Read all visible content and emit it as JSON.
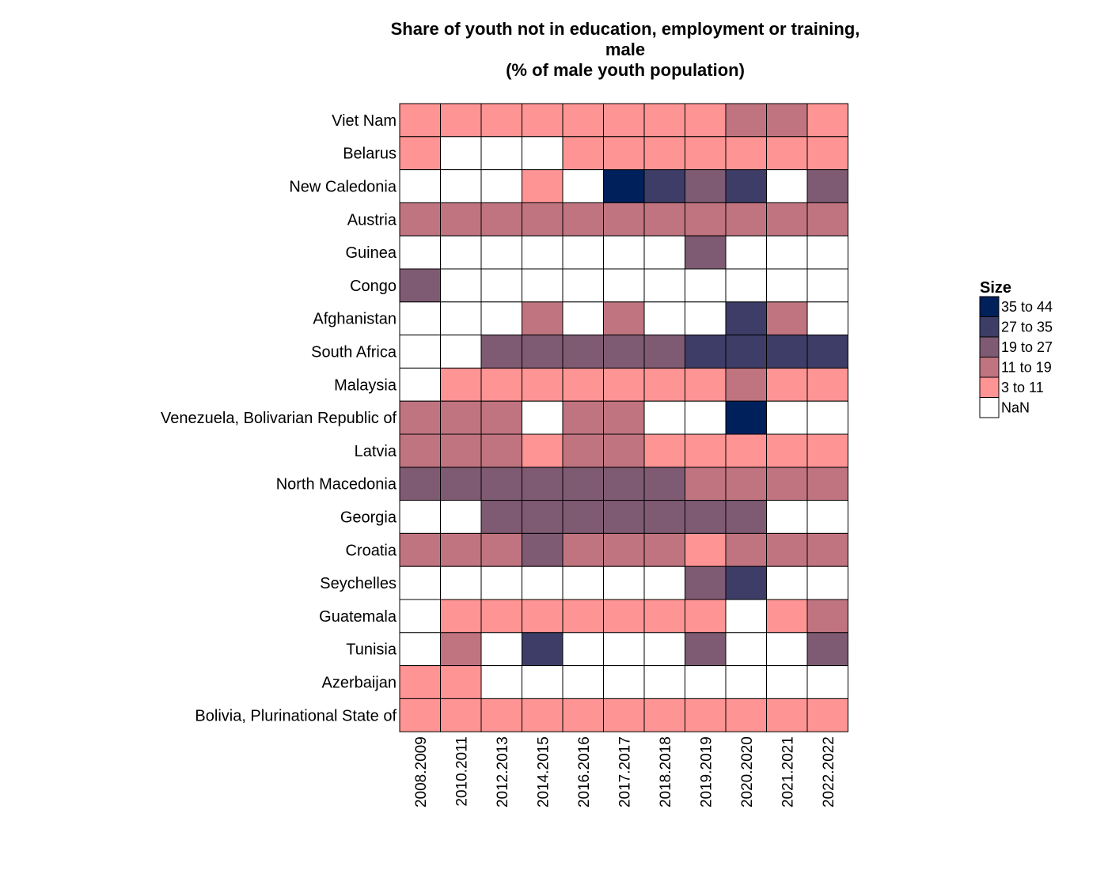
{
  "chart_data": {
    "type": "heatmap",
    "title": [
      "Share of youth not in education, employment or training,",
      "male",
      "(% of male youth population)"
    ],
    "columns": [
      "2008.2009",
      "2010.2011",
      "2012.2013",
      "2014.2015",
      "2016.2016",
      "2017.2017",
      "2018.2018",
      "2019.2019",
      "2020.2020",
      "2021.2021",
      "2022.2022"
    ],
    "rows": [
      "Viet Nam",
      "Belarus",
      "New Caledonia",
      "Austria",
      "Guinea",
      "Congo",
      "Afghanistan",
      "South Africa",
      "Malaysia",
      "Venezuela, Bolivarian Republic of",
      "Latvia",
      "North Macedonia",
      "Georgia",
      "Croatia",
      "Seychelles",
      "Guatemala",
      "Tunisia",
      "Azerbaijan",
      "Bolivia, Plurinational State of"
    ],
    "values": [
      [
        7,
        7,
        7,
        7,
        7,
        7,
        7,
        7,
        13,
        13,
        7
      ],
      [
        7,
        null,
        null,
        null,
        7,
        7,
        7,
        7,
        7,
        7,
        7
      ],
      [
        null,
        null,
        null,
        7,
        null,
        38,
        30,
        22,
        30,
        null,
        22
      ],
      [
        14,
        14,
        14,
        14,
        14,
        14,
        14,
        14,
        14,
        14,
        14
      ],
      [
        null,
        null,
        null,
        null,
        null,
        null,
        null,
        22,
        null,
        null,
        null
      ],
      [
        22,
        null,
        null,
        null,
        null,
        null,
        null,
        null,
        null,
        null,
        null
      ],
      [
        null,
        null,
        null,
        14,
        null,
        14,
        null,
        null,
        30,
        14,
        null
      ],
      [
        null,
        null,
        22,
        22,
        22,
        22,
        22,
        30,
        30,
        30,
        30
      ],
      [
        null,
        7,
        7,
        7,
        7,
        7,
        7,
        7,
        14,
        7,
        7
      ],
      [
        14,
        14,
        14,
        null,
        14,
        14,
        null,
        null,
        38,
        null,
        null
      ],
      [
        14,
        14,
        14,
        7,
        14,
        14,
        7,
        7,
        7,
        7,
        7
      ],
      [
        22,
        22,
        22,
        22,
        22,
        22,
        22,
        14,
        14,
        14,
        14
      ],
      [
        null,
        null,
        22,
        22,
        22,
        22,
        22,
        22,
        22,
        null,
        null
      ],
      [
        14,
        14,
        14,
        22,
        14,
        14,
        14,
        7,
        14,
        14,
        14
      ],
      [
        null,
        null,
        null,
        null,
        null,
        null,
        null,
        22,
        30,
        null,
        null
      ],
      [
        null,
        7,
        7,
        7,
        7,
        7,
        7,
        7,
        null,
        7,
        14
      ],
      [
        null,
        14,
        null,
        30,
        null,
        null,
        null,
        22,
        null,
        null,
        22
      ],
      [
        7,
        7,
        null,
        null,
        null,
        null,
        null,
        null,
        null,
        null,
        null
      ],
      [
        7,
        7,
        7,
        7,
        7,
        7,
        7,
        7,
        7,
        7,
        7
      ]
    ],
    "legend": {
      "title": "Size",
      "placement": "right",
      "bins": [
        {
          "label": "35 to 44",
          "min": 35,
          "max": 44,
          "color": "#00205b"
        },
        {
          "label": "27 to 35",
          "min": 27,
          "max": 35,
          "color": "#3d3d68"
        },
        {
          "label": "19 to 27",
          "min": 19,
          "max": 27,
          "color": "#7f5a73"
        },
        {
          "label": "11 to 19",
          "min": 11,
          "max": 19,
          "color": "#c07480"
        },
        {
          "label": "3 to 11",
          "min": 3,
          "max": 11,
          "color": "#ff9494"
        },
        {
          "label": "NaN",
          "min": null,
          "max": null,
          "color": "#ffffff"
        }
      ]
    }
  }
}
